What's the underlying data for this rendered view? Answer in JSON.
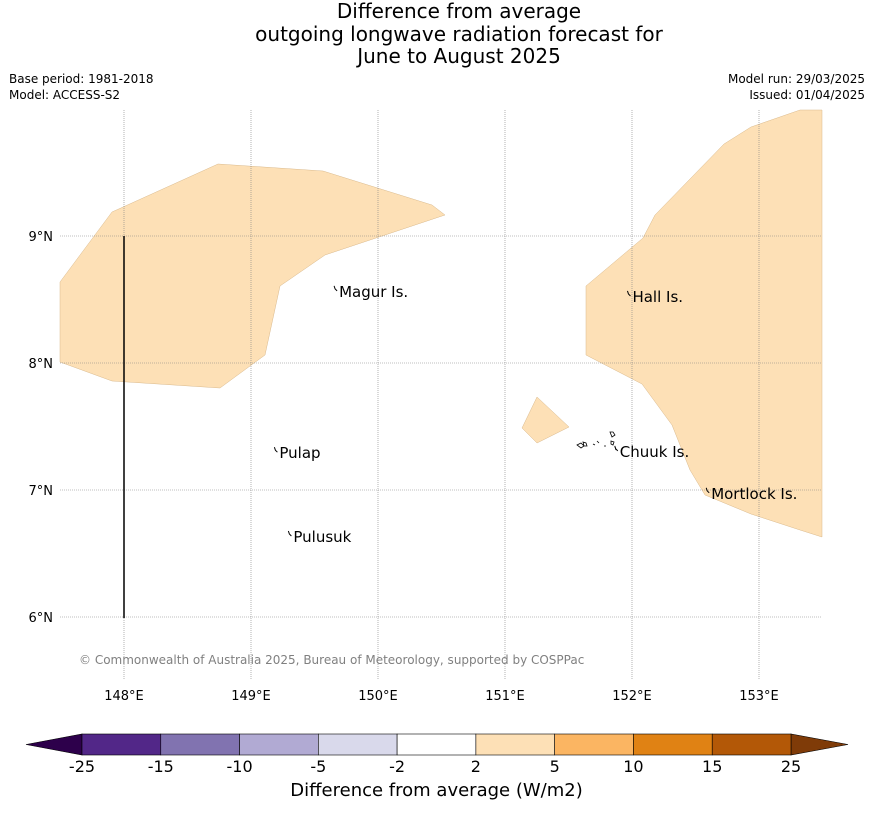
{
  "title": {
    "line1": "Difference from average",
    "line2": "outgoing longwave radiation forecast for",
    "line3": "June to August 2025"
  },
  "meta": {
    "base_period": "Base period: 1981-2018",
    "model": "Model: ACCESS-S2",
    "model_run": "Model run: 29/03/2025",
    "issued": "Issued: 01/04/2025"
  },
  "map": {
    "lon_range": [
      147.5,
      153.5
    ],
    "lat_range": [
      5.5,
      9.95
    ],
    "lon_ticks": [
      "148°E",
      "149°E",
      "150°E",
      "151°E",
      "152°E",
      "153°E"
    ],
    "lat_ticks": [
      "9°N",
      "8°N",
      "7°N",
      "6°N"
    ],
    "places": [
      {
        "name": "Magur Is.",
        "lon": 149.67,
        "lat": 8.56
      },
      {
        "name": "Hall Is.",
        "lon": 151.98,
        "lat": 8.52
      },
      {
        "name": "Pulap",
        "lon": 149.2,
        "lat": 7.29
      },
      {
        "name": "Chuuk Is.",
        "lon": 151.88,
        "lat": 7.3
      },
      {
        "name": "Mortlock Is.",
        "lon": 152.6,
        "lat": 6.97
      },
      {
        "name": "Pulusuk",
        "lon": 149.31,
        "lat": 6.63
      }
    ],
    "shaded_class": "2 to 5",
    "shaded_color": "#fde0b6",
    "copyright": "© Commonwealth of Australia 2025, Bureau of Meteorology, supported by COSPPac"
  },
  "colorbar": {
    "title": "Difference from average (W/m2)",
    "ticks": [
      "-25",
      "-15",
      "-10",
      "-5",
      "-2",
      "2",
      "5",
      "10",
      "15",
      "25"
    ],
    "colors": [
      "#522788",
      "#8173b0",
      "#b1aad3",
      "#d9d9eb",
      "#ffffff",
      "#fde0b6",
      "#fbb562",
      "#e08214",
      "#b35807"
    ],
    "under_color": "#2d004b",
    "over_color": "#7f3b08"
  }
}
